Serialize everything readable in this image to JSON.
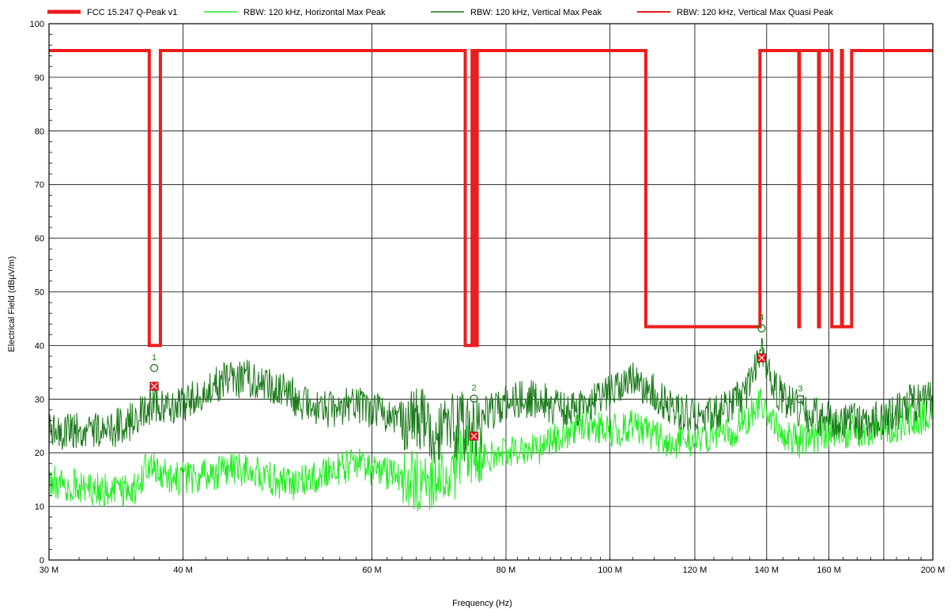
{
  "chart_data": {
    "type": "line",
    "xlabel": "Frequency (Hz)",
    "ylabel": "Electrical Field (dBµV/m)",
    "x_scale": "log",
    "xlim": [
      30000000,
      200000000
    ],
    "ylim": [
      0,
      100
    ],
    "grid": true,
    "legend_position": "top",
    "x_ticks": [
      {
        "value": 30000000,
        "label": "30 M"
      },
      {
        "value": 40000000,
        "label": "40 M"
      },
      {
        "value": 60000000,
        "label": "60 M"
      },
      {
        "value": 80000000,
        "label": "80 M"
      },
      {
        "value": 100000000,
        "label": "100 M"
      },
      {
        "value": 120000000,
        "label": "120 M"
      },
      {
        "value": 140000000,
        "label": "140 M"
      },
      {
        "value": 160000000,
        "label": "160 M"
      },
      {
        "value": 200000000,
        "label": "200 M"
      }
    ],
    "x_grid_extra": [
      180000000
    ],
    "y_ticks": [
      0,
      10,
      20,
      30,
      40,
      50,
      60,
      70,
      80,
      90,
      100
    ],
    "series": [
      {
        "name": "FCC 15.247 Q-Peak v1",
        "color": "#ee1c1c",
        "style": "thick-step",
        "points": [
          [
            30000000,
            95
          ],
          [
            37200000,
            95
          ],
          [
            37200000,
            40
          ],
          [
            38100000,
            40
          ],
          [
            38100000,
            95
          ],
          [
            73300000,
            95
          ],
          [
            73300000,
            40
          ],
          [
            74400000,
            40
          ],
          [
            74400000,
            95
          ],
          [
            74700000,
            95
          ],
          [
            74700000,
            40
          ],
          [
            75200000,
            40
          ],
          [
            75200000,
            95
          ],
          [
            108000000,
            95
          ],
          [
            108000000,
            43.5
          ],
          [
            138000000,
            43.5
          ],
          [
            138000000,
            95
          ],
          [
            150000000,
            95
          ],
          [
            150000000,
            43.5
          ],
          [
            150200000,
            43.5
          ],
          [
            150200000,
            95
          ],
          [
            156500000,
            95
          ],
          [
            156500000,
            43.5
          ],
          [
            156800000,
            43.5
          ],
          [
            156800000,
            95
          ],
          [
            161000000,
            95
          ],
          [
            161000000,
            43.5
          ],
          [
            164400000,
            43.5
          ],
          [
            164400000,
            95
          ],
          [
            164700000,
            95
          ],
          [
            164700000,
            43.5
          ],
          [
            168000000,
            43.5
          ],
          [
            168000000,
            95
          ],
          [
            200000000,
            95
          ]
        ]
      },
      {
        "name": "RBW: 120 kHz, Horizontal Max Peak",
        "color": "#22ee22",
        "style": "noisy",
        "envelope": [
          [
            30000000,
            15
          ],
          [
            33000000,
            13
          ],
          [
            36000000,
            13
          ],
          [
            37200000,
            18
          ],
          [
            39000000,
            15
          ],
          [
            42000000,
            16
          ],
          [
            46000000,
            17
          ],
          [
            50000000,
            14
          ],
          [
            54000000,
            16
          ],
          [
            58000000,
            18
          ],
          [
            62000000,
            16
          ],
          [
            66000000,
            14
          ],
          [
            70000000,
            15
          ],
          [
            74000000,
            20
          ],
          [
            78000000,
            19
          ],
          [
            82000000,
            21
          ],
          [
            86000000,
            21
          ],
          [
            90000000,
            23
          ],
          [
            95000000,
            25
          ],
          [
            100000000,
            24
          ],
          [
            105000000,
            25
          ],
          [
            110000000,
            23
          ],
          [
            115000000,
            22
          ],
          [
            120000000,
            22
          ],
          [
            125000000,
            24
          ],
          [
            130000000,
            24
          ],
          [
            135000000,
            27
          ],
          [
            138000000,
            29
          ],
          [
            142000000,
            26
          ],
          [
            146000000,
            23
          ],
          [
            150000000,
            22
          ],
          [
            160000000,
            24
          ],
          [
            170000000,
            24
          ],
          [
            180000000,
            24
          ],
          [
            190000000,
            26
          ],
          [
            200000000,
            27
          ]
        ],
        "amplitude": 3.2
      },
      {
        "name": "RBW: 120 kHz, Vertical Max Peak",
        "color": "#1a7a1a",
        "style": "noisy",
        "envelope": [
          [
            30000000,
            24
          ],
          [
            34000000,
            24
          ],
          [
            36000000,
            26
          ],
          [
            37500000,
            29
          ],
          [
            40000000,
            29
          ],
          [
            43000000,
            33
          ],
          [
            46000000,
            34
          ],
          [
            50000000,
            31
          ],
          [
            54000000,
            28
          ],
          [
            58000000,
            29
          ],
          [
            62000000,
            27
          ],
          [
            66000000,
            26
          ],
          [
            70000000,
            24
          ],
          [
            74000000,
            25
          ],
          [
            78000000,
            28
          ],
          [
            82000000,
            30
          ],
          [
            86000000,
            30
          ],
          [
            90000000,
            28
          ],
          [
            95000000,
            28
          ],
          [
            100000000,
            32
          ],
          [
            105000000,
            34
          ],
          [
            110000000,
            31
          ],
          [
            115000000,
            28
          ],
          [
            120000000,
            27
          ],
          [
            125000000,
            27
          ],
          [
            130000000,
            29
          ],
          [
            134000000,
            31
          ],
          [
            137000000,
            37
          ],
          [
            138500000,
            40
          ],
          [
            141000000,
            34
          ],
          [
            145000000,
            30
          ],
          [
            150000000,
            28
          ],
          [
            160000000,
            26
          ],
          [
            170000000,
            26
          ],
          [
            180000000,
            26
          ],
          [
            190000000,
            29
          ],
          [
            200000000,
            30
          ]
        ],
        "amplitude": 3.6
      },
      {
        "name": "RBW: 120 kHz, Vertical Max Quasi Peak",
        "color": "#ee1c1c",
        "style": "points",
        "points": [
          [
            37600000,
            32.4
          ],
          [
            74700000,
            23.1
          ],
          [
            138500000,
            37.7
          ]
        ]
      }
    ],
    "markers": [
      {
        "label": "1",
        "x": 37600000,
        "y": 35.8
      },
      {
        "label": "2",
        "x": 74700000,
        "y": 30.1
      },
      {
        "label": "3",
        "x": 150500000,
        "y": 30.0
      },
      {
        "label": "4",
        "x": 138500000,
        "y": 43.2
      }
    ]
  }
}
